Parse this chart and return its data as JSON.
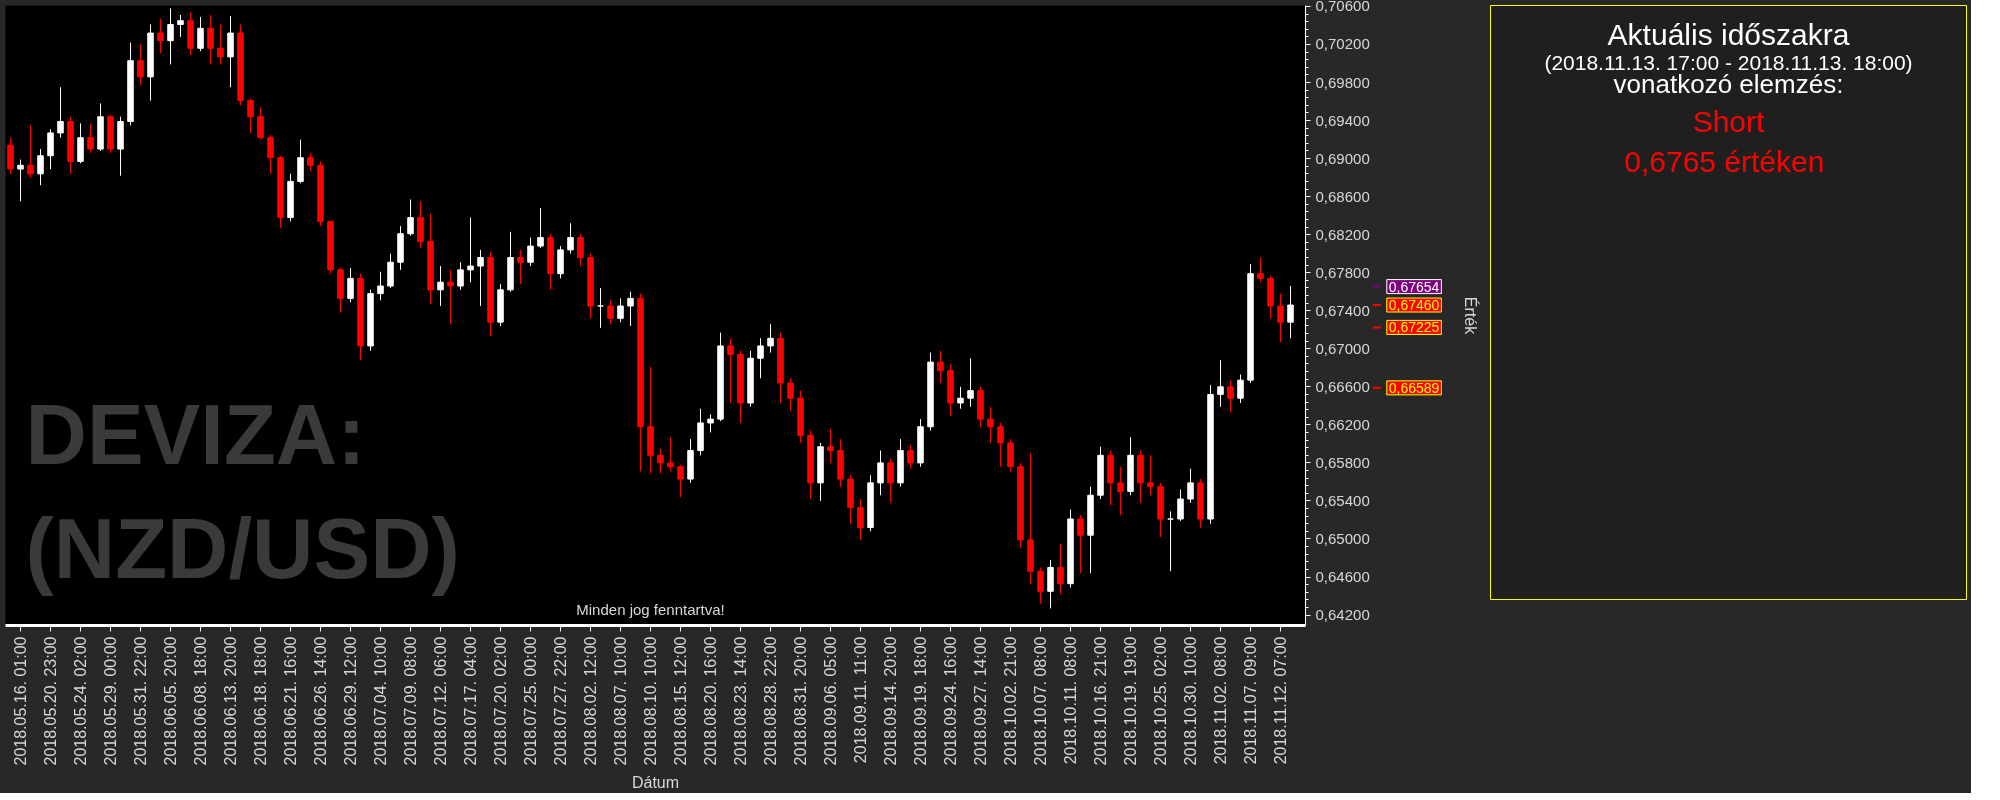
{
  "chart_data": [
    {
      "type": "candlestick",
      "title": "DEVIZA: (NZD/USD)",
      "xlabel": "Dátum",
      "ylabel": "Érték",
      "categories": [
        null,
        "2018.05.16. 01:00",
        null,
        null,
        "2018.05.20. 23:00",
        null,
        null,
        "2018.05.24. 02:00",
        null,
        null,
        "2018.05.29. 00:00",
        null,
        null,
        "2018.05.31. 22:00",
        null,
        null,
        "2018.06.05. 20:00",
        null,
        null,
        "2018.06.08. 18:00",
        null,
        null,
        "2018.06.13. 20:00",
        null,
        null,
        "2018.06.18. 18:00",
        null,
        null,
        "2018.06.21. 16:00",
        null,
        null,
        "2018.06.26. 14:00",
        null,
        null,
        "2018.06.29. 12:00",
        null,
        null,
        "2018.07.04. 10:00",
        null,
        null,
        "2018.07.09. 08:00",
        null,
        null,
        "2018.07.12. 06:00",
        null,
        null,
        "2018.07.17. 04:00",
        null,
        null,
        "2018.07.20. 02:00",
        null,
        null,
        "2018.07.25. 00:00",
        null,
        null,
        "2018.07.27. 22:00",
        null,
        null,
        "2018.08.02. 12:00",
        null,
        null,
        "2018.08.07. 10:00",
        null,
        null,
        "2018.08.10. 10:00",
        null,
        null,
        "2018.08.15. 12:00",
        null,
        null,
        "2018.08.20. 16:00",
        null,
        null,
        "2018.08.23. 14:00",
        null,
        null,
        "2018.08.28. 22:00",
        null,
        null,
        "2018.08.31. 20:00",
        null,
        null,
        "2018.09.06. 05:00",
        null,
        null,
        "2018.09.11. 11:00",
        null,
        null,
        "2018.09.14. 20:00",
        null,
        null,
        "2018.09.19. 18:00",
        null,
        null,
        "2018.09.24. 16:00",
        null,
        null,
        "2018.09.27. 14:00",
        null,
        null,
        "2018.10.02. 21:00",
        null,
        null,
        "2018.10.07. 08:00",
        null,
        null,
        "2018.10.11. 08:00",
        null,
        null,
        "2018.10.16. 21:00",
        null,
        null,
        "2018.10.19. 19:00",
        null,
        null,
        "2018.10.25. 02:00",
        null,
        null,
        "2018.10.30. 10:00",
        null,
        null,
        "2018.11.02. 08:00",
        null,
        null,
        "2018.11.07. 09:00",
        null,
        null,
        "2018.11.12. 07:00",
        null
      ],
      "ohlc": [
        [
          0.6914,
          0.6922,
          0.6884,
          0.6889
        ],
        [
          0.6889,
          0.6899,
          0.6855,
          0.6893
        ],
        [
          0.6893,
          0.6935,
          0.688,
          0.6884
        ],
        [
          0.6884,
          0.691,
          0.6872,
          0.6903
        ],
        [
          0.6903,
          0.6931,
          0.6889,
          0.6927
        ],
        [
          0.6927,
          0.6975,
          0.6922,
          0.6939
        ],
        [
          0.6939,
          0.6944,
          0.6884,
          0.6897
        ],
        [
          0.6897,
          0.6937,
          0.6895,
          0.6922
        ],
        [
          0.6922,
          0.6937,
          0.6906,
          0.691
        ],
        [
          0.691,
          0.6958,
          0.6908,
          0.6944
        ],
        [
          0.6944,
          0.6946,
          0.6906,
          0.691
        ],
        [
          0.691,
          0.6944,
          0.6882,
          0.6939
        ],
        [
          0.6939,
          0.7022,
          0.6935,
          0.7003
        ],
        [
          0.7003,
          0.702,
          0.6977,
          0.6986
        ],
        [
          0.6986,
          0.7041,
          0.6961,
          0.7032
        ],
        [
          0.7032,
          0.7047,
          0.7011,
          0.7024
        ],
        [
          0.7024,
          0.7058,
          0.6999,
          0.7041
        ],
        [
          0.7041,
          0.7051,
          0.7028,
          0.7045
        ],
        [
          0.7045,
          0.7054,
          0.7009,
          0.7016
        ],
        [
          0.7016,
          0.7049,
          0.7013,
          0.7037
        ],
        [
          0.7037,
          0.7051,
          0.6999,
          0.7016
        ],
        [
          0.7016,
          0.7041,
          0.6999,
          0.7007
        ],
        [
          0.7007,
          0.705,
          0.6975,
          0.7032
        ],
        [
          0.7032,
          0.7041,
          0.6956,
          0.6961
        ],
        [
          0.6961,
          0.6963,
          0.6927,
          0.6944
        ],
        [
          0.6944,
          0.6954,
          0.692,
          0.6922
        ],
        [
          0.6922,
          0.6925,
          0.6884,
          0.6901
        ],
        [
          0.6901,
          0.6903,
          0.6827,
          0.6838
        ],
        [
          0.6838,
          0.6884,
          0.6834,
          0.6876
        ],
        [
          0.6876,
          0.692,
          0.6874,
          0.6901
        ],
        [
          0.6901,
          0.6906,
          0.6887,
          0.6893
        ],
        [
          0.6893,
          0.6897,
          0.6829,
          0.6834
        ],
        [
          0.6834,
          0.6834,
          0.6779,
          0.6783
        ],
        [
          0.6783,
          0.6785,
          0.6738,
          0.6753
        ],
        [
          0.6753,
          0.6785,
          0.6749,
          0.6774
        ],
        [
          0.6774,
          0.6779,
          0.6688,
          0.6703
        ],
        [
          0.6703,
          0.6762,
          0.6698,
          0.6758
        ],
        [
          0.6758,
          0.6781,
          0.6751,
          0.6766
        ],
        [
          0.6766,
          0.68,
          0.6764,
          0.6791
        ],
        [
          0.6791,
          0.6829,
          0.6783,
          0.6821
        ],
        [
          0.6821,
          0.6857,
          0.6819,
          0.6838
        ],
        [
          0.6838,
          0.6855,
          0.6806,
          0.6813
        ],
        [
          0.6813,
          0.6842,
          0.6747,
          0.6762
        ],
        [
          0.6762,
          0.6787,
          0.6745,
          0.677
        ],
        [
          0.677,
          0.6783,
          0.6726,
          0.6766
        ],
        [
          0.6766,
          0.6791,
          0.6762,
          0.6783
        ],
        [
          0.6783,
          0.6838,
          0.677,
          0.6787
        ],
        [
          0.6787,
          0.6804,
          0.6745,
          0.6796
        ],
        [
          0.6796,
          0.6802,
          0.6713,
          0.6728
        ],
        [
          0.6728,
          0.6768,
          0.6724,
          0.6762
        ],
        [
          0.6762,
          0.6823,
          0.676,
          0.6796
        ],
        [
          0.6796,
          0.6804,
          0.6768,
          0.6791
        ],
        [
          0.6791,
          0.6817,
          0.6787,
          0.6808
        ],
        [
          0.6808,
          0.6848,
          0.6806,
          0.6817
        ],
        [
          0.6817,
          0.6821,
          0.6762,
          0.6779
        ],
        [
          0.6779,
          0.6808,
          0.6774,
          0.6804
        ],
        [
          0.6804,
          0.6832,
          0.68,
          0.6817
        ],
        [
          0.6817,
          0.6821,
          0.6787,
          0.6796
        ],
        [
          0.6796,
          0.68,
          0.6732,
          0.6745
        ],
        [
          0.6745,
          0.6764,
          0.6722,
          0.6745
        ],
        [
          0.6745,
          0.6751,
          0.6726,
          0.6732
        ],
        [
          0.6732,
          0.6753,
          0.6728,
          0.6745
        ],
        [
          0.6745,
          0.676,
          0.6724,
          0.6753
        ],
        [
          0.6753,
          0.6758,
          0.6571,
          0.6618
        ],
        [
          0.6618,
          0.6681,
          0.6569,
          0.6588
        ],
        [
          0.6588,
          0.6595,
          0.6569,
          0.658
        ],
        [
          0.658,
          0.6607,
          0.6571,
          0.6576
        ],
        [
          0.6576,
          0.6578,
          0.6544,
          0.6563
        ],
        [
          0.6563,
          0.6605,
          0.6559,
          0.6593
        ],
        [
          0.6593,
          0.6637,
          0.6588,
          0.6622
        ],
        [
          0.6622,
          0.6631,
          0.6612,
          0.6626
        ],
        [
          0.6626,
          0.6717,
          0.6624,
          0.6703
        ],
        [
          0.6703,
          0.6711,
          0.6643,
          0.6694
        ],
        [
          0.6694,
          0.6698,
          0.6622,
          0.6643
        ],
        [
          0.6643,
          0.6698,
          0.6639,
          0.669
        ],
        [
          0.669,
          0.6711,
          0.6669,
          0.6703
        ],
        [
          0.6703,
          0.6726,
          0.6696,
          0.6711
        ],
        [
          0.6711,
          0.6717,
          0.6643,
          0.6664
        ],
        [
          0.6664,
          0.6669,
          0.6635,
          0.6648
        ],
        [
          0.6648,
          0.6656,
          0.6601,
          0.6609
        ],
        [
          0.6609,
          0.6614,
          0.6542,
          0.6559
        ],
        [
          0.6559,
          0.6601,
          0.654,
          0.6597
        ],
        [
          0.6597,
          0.6616,
          0.658,
          0.6593
        ],
        [
          0.6593,
          0.6605,
          0.6555,
          0.6563
        ],
        [
          0.6563,
          0.6567,
          0.6516,
          0.6533
        ],
        [
          0.6533,
          0.6542,
          0.6499,
          0.6512
        ],
        [
          0.6512,
          0.6567,
          0.6508,
          0.6559
        ],
        [
          0.6559,
          0.6593,
          0.6546,
          0.658
        ],
        [
          0.658,
          0.6584,
          0.6538,
          0.6559
        ],
        [
          0.6559,
          0.6605,
          0.6555,
          0.6593
        ],
        [
          0.6593,
          0.6599,
          0.6574,
          0.658
        ],
        [
          0.658,
          0.6626,
          0.6576,
          0.6618
        ],
        [
          0.6618,
          0.6696,
          0.6614,
          0.6686
        ],
        [
          0.6686,
          0.6698,
          0.6664,
          0.6677
        ],
        [
          0.6677,
          0.6684,
          0.6629,
          0.6643
        ],
        [
          0.6643,
          0.666,
          0.6637,
          0.6648
        ],
        [
          0.6648,
          0.669,
          0.6639,
          0.6656
        ],
        [
          0.6656,
          0.666,
          0.6618,
          0.6626
        ],
        [
          0.6626,
          0.6639,
          0.6601,
          0.6618
        ],
        [
          0.6618,
          0.6622,
          0.6576,
          0.6601
        ],
        [
          0.6601,
          0.6605,
          0.6571,
          0.6576
        ],
        [
          0.6576,
          0.658,
          0.6491,
          0.6499
        ],
        [
          0.6499,
          0.659,
          0.6453,
          0.6466
        ],
        [
          0.6466,
          0.647,
          0.6432,
          0.6445
        ],
        [
          0.6445,
          0.6478,
          0.6427,
          0.647
        ],
        [
          0.647,
          0.6495,
          0.6442,
          0.6453
        ],
        [
          0.6453,
          0.6531,
          0.6449,
          0.6521
        ],
        [
          0.6521,
          0.6525,
          0.6464,
          0.6504
        ],
        [
          0.6504,
          0.6555,
          0.6464,
          0.6546
        ],
        [
          0.6546,
          0.6597,
          0.6542,
          0.6588
        ],
        [
          0.6588,
          0.6593,
          0.6535,
          0.6559
        ],
        [
          0.6559,
          0.6576,
          0.6525,
          0.655
        ],
        [
          0.655,
          0.6607,
          0.6546,
          0.6588
        ],
        [
          0.6588,
          0.6593,
          0.6538,
          0.6559
        ],
        [
          0.6559,
          0.6588,
          0.6546,
          0.6555
        ],
        [
          0.6555,
          0.6559,
          0.6502,
          0.6521
        ],
        [
          0.6521,
          0.6529,
          0.6466,
          0.6521
        ],
        [
          0.6521,
          0.6552,
          0.6519,
          0.6542
        ],
        [
          0.6542,
          0.6574,
          0.6538,
          0.6559
        ],
        [
          0.6559,
          0.6563,
          0.6512,
          0.6521
        ],
        [
          0.6521,
          0.6662,
          0.6516,
          0.6652
        ],
        [
          0.6652,
          0.6688,
          0.6639,
          0.666
        ],
        [
          0.666,
          0.6667,
          0.6633,
          0.6648
        ],
        [
          0.6648,
          0.6673,
          0.6643,
          0.6667
        ],
        [
          0.6667,
          0.6789,
          0.6664,
          0.6779
        ],
        [
          0.6779,
          0.6796,
          0.677,
          0.6774
        ],
        [
          0.6774,
          0.6777,
          0.6732,
          0.6745
        ],
        [
          0.6745,
          0.6758,
          0.6707,
          0.6728
        ],
        [
          0.6728,
          0.6766,
          0.6711,
          0.6746
        ]
      ],
      "colors": [
        "#ff0000",
        "#ffffff",
        "#ff0000",
        "#ffffff",
        "#ffffff",
        "#ffffff",
        "#ff0000",
        "#ffffff",
        "#ff0000",
        "#ffffff",
        "#ff0000",
        "#ffffff",
        "#ffffff",
        "#ff0000",
        "#ffffff",
        "#ff0000",
        "#ffffff",
        "#ffffff",
        "#ff0000",
        "#ffffff",
        "#ff0000",
        "#ff0000",
        "#ffffff",
        "#ff0000",
        "#ff0000",
        "#ff0000",
        "#ff0000",
        "#ff0000",
        "#ffffff",
        "#ffffff",
        "#ff0000",
        "#ff0000",
        "#ff0000",
        "#ff0000",
        "#ffffff",
        "#ff0000",
        "#ffffff",
        "#ffffff",
        "#ffffff",
        "#ffffff",
        "#ffffff",
        "#ff0000",
        "#ff0000",
        "#ffffff",
        "#ff0000",
        "#ffffff",
        "#ffffff",
        "#ffffff",
        "#ff0000",
        "#ffffff",
        "#ffffff",
        "#ff0000",
        "#ffffff",
        "#ffffff",
        "#ff0000",
        "#ffffff",
        "#ffffff",
        "#ff0000",
        "#ff0000",
        "#ffffff",
        "#ff0000",
        "#ffffff",
        "#ffffff",
        "#ff0000",
        "#ff0000",
        "#ff0000",
        "#ff0000",
        "#ff0000",
        "#ffffff",
        "#ffffff",
        "#ffffff",
        "#ffffff",
        "#ff0000",
        "#ff0000",
        "#ffffff",
        "#ffffff",
        "#ffffff",
        "#ff0000",
        "#ff0000",
        "#ff0000",
        "#ff0000",
        "#ffffff",
        "#ff0000",
        "#ff0000",
        "#ff0000",
        "#ff0000",
        "#ffffff",
        "#ffffff",
        "#ff0000",
        "#ffffff",
        "#ff0000",
        "#ffffff",
        "#ffffff",
        "#ff0000",
        "#ff0000",
        "#ffffff",
        "#ffffff",
        "#ff0000",
        "#ff0000",
        "#ff0000",
        "#ff0000",
        "#ff0000",
        "#ff0000",
        "#ff0000",
        "#ffffff",
        "#ff0000",
        "#ffffff",
        "#ff0000",
        "#ffffff",
        "#ffffff",
        "#ff0000",
        "#ff0000",
        "#ffffff",
        "#ff0000",
        "#ff0000",
        "#ff0000",
        "#ffffff",
        "#ffffff",
        "#ffffff",
        "#ff0000",
        "#ffffff",
        "#ffffff",
        "#ff0000",
        "#ffffff",
        "#ffffff",
        "#ff0000",
        "#ff0000",
        "#ff0000",
        "#ffffff"
      ],
      "ylim": [
        0.6409,
        0.7061
      ],
      "yticks": [
        {
          "value": 0.642,
          "label": "0,64200"
        },
        {
          "value": 0.646,
          "label": "0,64600"
        },
        {
          "value": 0.65,
          "label": "0,65000"
        },
        {
          "value": 0.654,
          "label": "0,65400"
        },
        {
          "value": 0.658,
          "label": "0,65800"
        },
        {
          "value": 0.662,
          "label": "0,66200"
        },
        {
          "value": 0.666,
          "label": "0,66600"
        },
        {
          "value": 0.67,
          "label": "0,67000"
        },
        {
          "value": 0.674,
          "label": "0,67400"
        },
        {
          "value": 0.678,
          "label": "0,67800"
        },
        {
          "value": 0.682,
          "label": "0,68200"
        },
        {
          "value": 0.686,
          "label": "0,68600"
        },
        {
          "value": 0.69,
          "label": "0,69000"
        },
        {
          "value": 0.694,
          "label": "0,69400"
        },
        {
          "value": 0.698,
          "label": "0,69800"
        },
        {
          "value": 0.702,
          "label": "0,70200"
        },
        {
          "value": 0.706,
          "label": "0,70600"
        }
      ],
      "ref_lines": [
        {
          "axis": "y",
          "value": 0.67654,
          "label": "0,67654",
          "color": "#800080"
        },
        {
          "axis": "y",
          "value": 0.6746,
          "label": "0,67460",
          "color": "#ff0000"
        },
        {
          "axis": "y",
          "value": 0.67225,
          "label": "0,67225",
          "color": "#ff0000"
        },
        {
          "axis": "y",
          "value": 0.66589,
          "label": "0,66589",
          "color": "#ff0000"
        }
      ],
      "annotations": [
        "Minden jog fenntartva!"
      ]
    },
    {
      "type": "other",
      "title": "Aktuális időszakra",
      "subtitle": "(2018.11.13. 17:00 - 2018.11.13. 18:00)",
      "annotations": [
        "vonatkozó elemzés:",
        "Short",
        "0,6765  értéken"
      ],
      "colors": [
        "#ffffff",
        "#ff0000",
        "#ff0000"
      ]
    }
  ]
}
